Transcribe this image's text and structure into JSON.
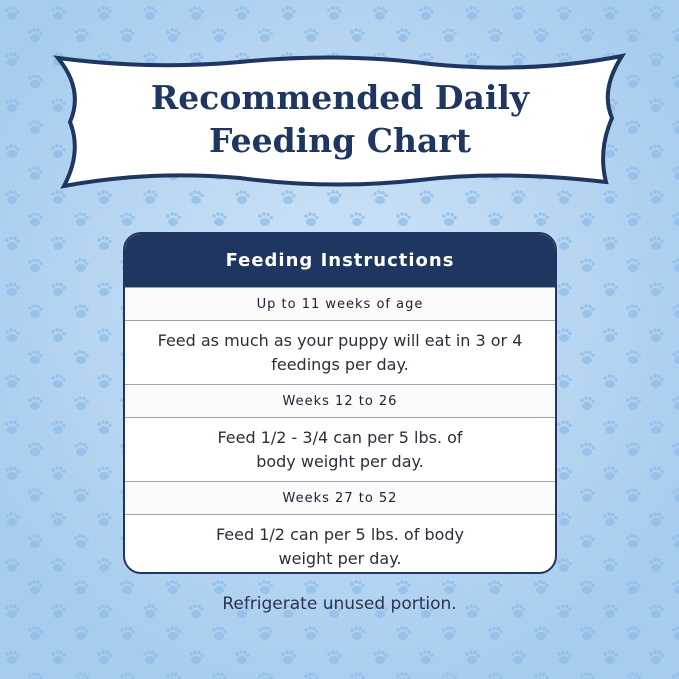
{
  "header": {
    "title_lines": [
      "Recommended Daily",
      "Feeding Chart"
    ]
  },
  "table": {
    "heading": "Feeding Instructions",
    "sections": [
      {
        "label": "Up to 11 weeks of age",
        "lines": [
          "Feed as much as your puppy will eat in 3 or 4",
          "feedings per day."
        ]
      },
      {
        "label": "Weeks 12 to 26",
        "lines": [
          "Feed 1/2 - 3/4 can per 5 lbs. of",
          "body weight per day."
        ]
      },
      {
        "label": "Weeks 27 to 52",
        "lines": [
          "Feed  1/2  can per 5 lbs. of body",
          "weight per day."
        ]
      }
    ]
  },
  "footer": {
    "note": "Refrigerate unused portion."
  }
}
